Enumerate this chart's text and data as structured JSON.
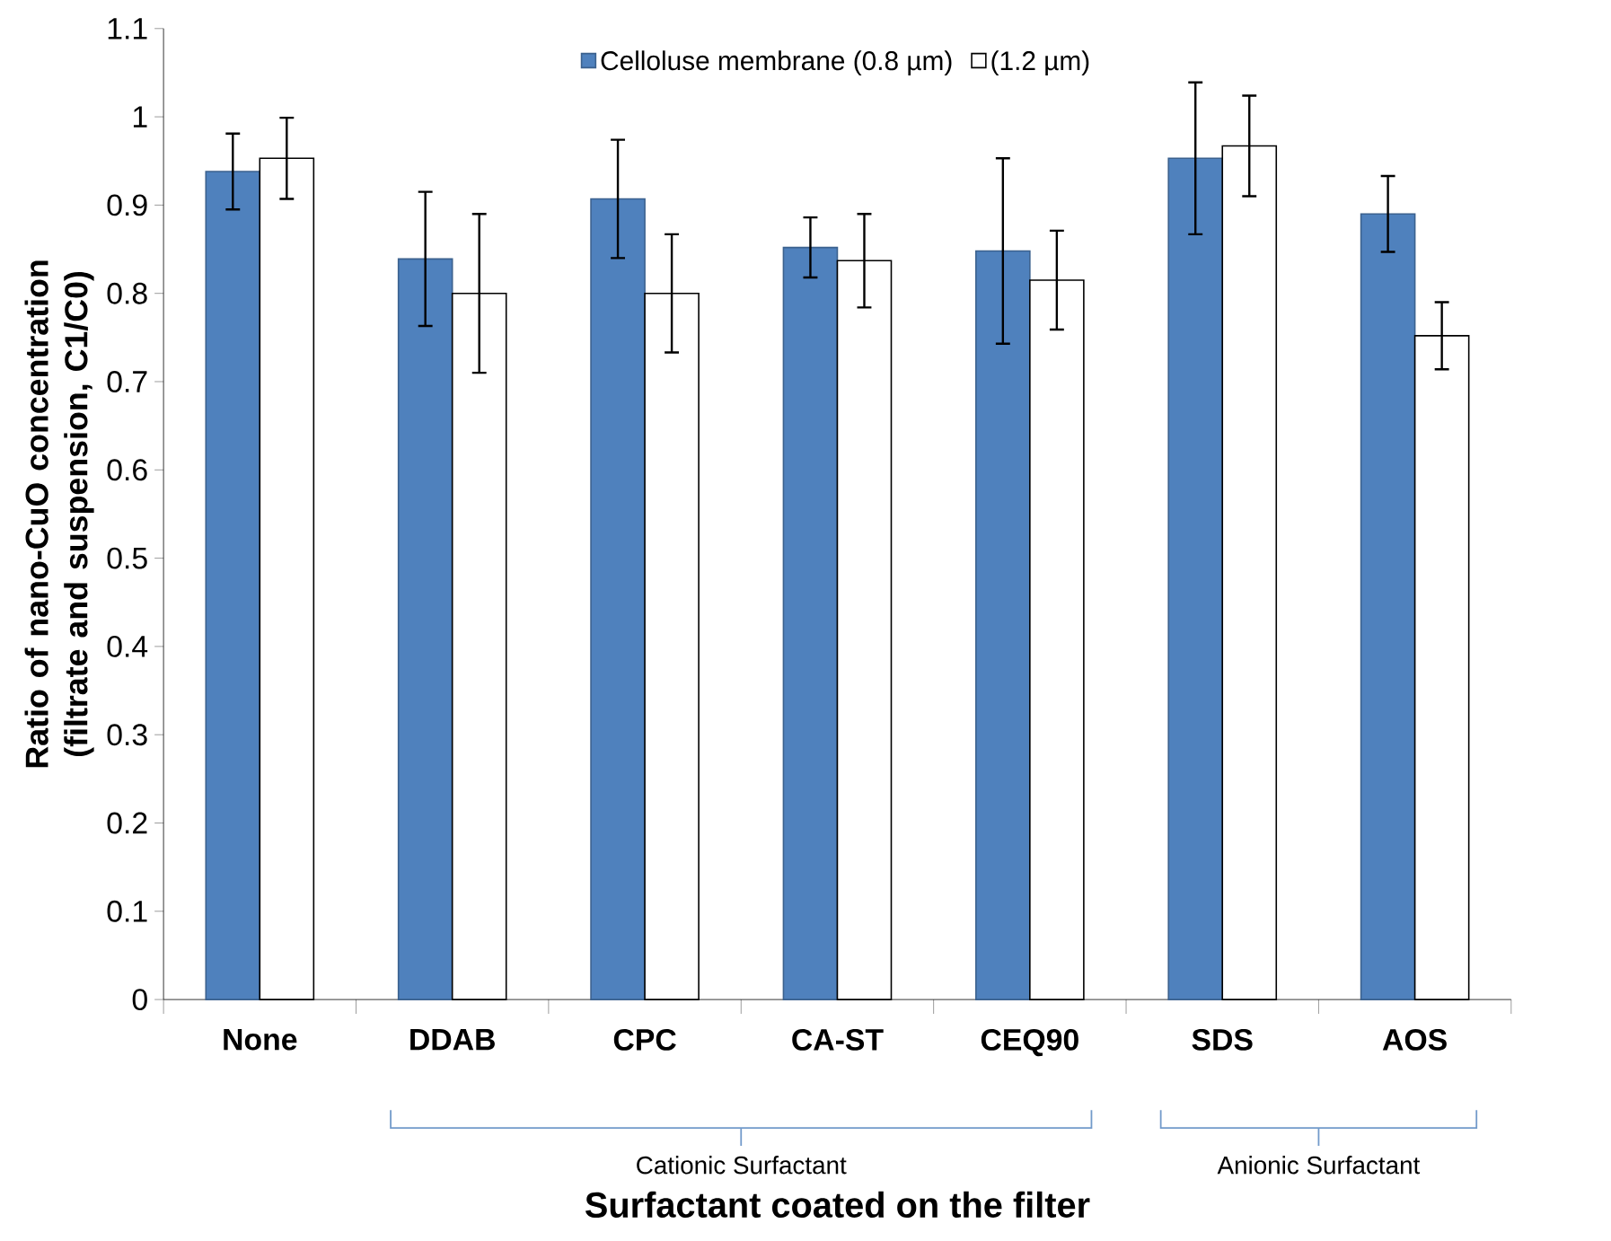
{
  "chart_data": {
    "type": "bar",
    "xlabel": "Surfactant coated  on the filter",
    "ylabel": "Ratio of nano-CuO concentration (filtrate and suspension, C1/C0)",
    "categories": [
      "None",
      "DDAB",
      "CPC",
      "CA-ST",
      "CEQ90",
      "SDS",
      "AOS"
    ],
    "series": [
      {
        "name": "Celloluse membrane (0.8 µm)",
        "color": "#4f81bd",
        "values": [
          0.938,
          0.839,
          0.907,
          0.852,
          0.848,
          0.953,
          0.89
        ],
        "errors": [
          0.043,
          0.076,
          0.067,
          0.034,
          0.105,
          0.086,
          0.043
        ]
      },
      {
        "name": "(1.2 µm)",
        "color": "#ffffff",
        "values": [
          0.953,
          0.8,
          0.8,
          0.837,
          0.815,
          0.967,
          0.752
        ],
        "errors": [
          0.046,
          0.09,
          0.067,
          0.053,
          0.056,
          0.057,
          0.038
        ]
      }
    ],
    "ylim": [
      0,
      1.1
    ],
    "yticks": [
      0,
      0.1,
      0.2,
      0.3,
      0.4,
      0.5,
      0.6,
      0.7,
      0.8,
      0.9,
      1,
      1.1
    ],
    "legend": "top",
    "annotations": [
      "Cationic Surfactant",
      "Anionic Surfactant"
    ]
  }
}
